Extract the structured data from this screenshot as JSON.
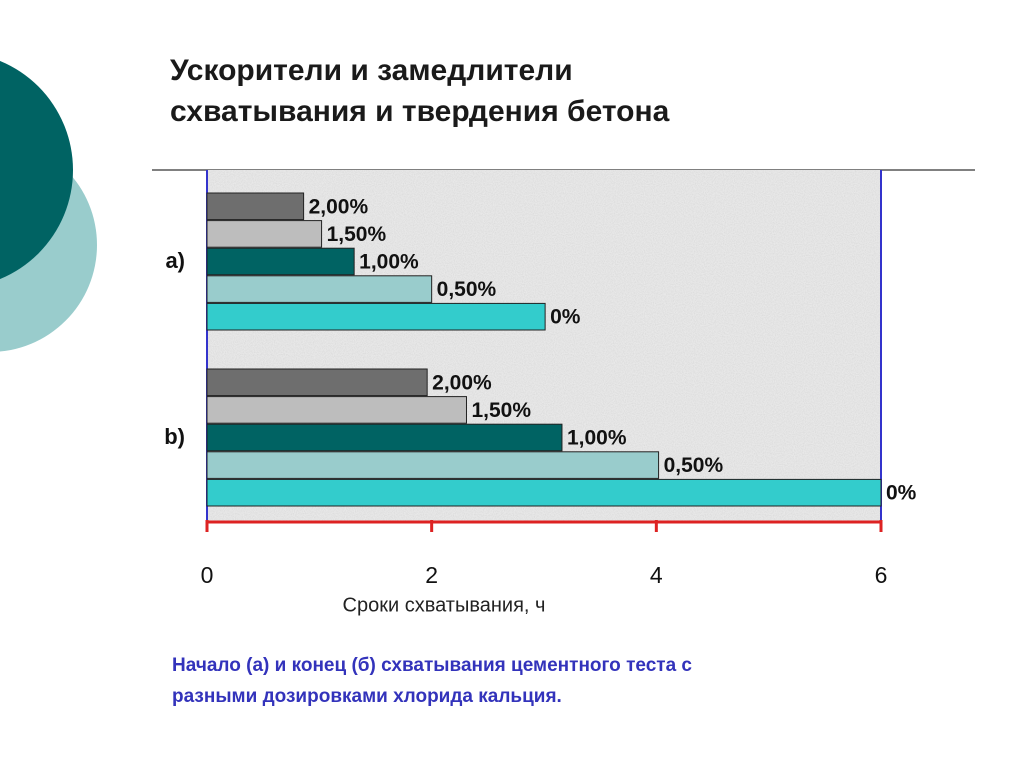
{
  "chart_data": {
    "type": "bar",
    "orientation": "horizontal",
    "title": [
      "Ускорители и замедлители",
      "схватывания и твердения бетона"
    ],
    "categories": [
      "а)",
      "b)"
    ],
    "series": [
      {
        "name": "2,00%",
        "color": "#6e6e6e",
        "values": [
          0.86,
          1.96
        ]
      },
      {
        "name": "1,50%",
        "color": "#bdbdbd",
        "values": [
          1.02,
          2.31
        ]
      },
      {
        "name": "1,00%",
        "color": "#006363",
        "values": [
          1.31,
          3.16
        ]
      },
      {
        "name": "0,50%",
        "color": "#99cccc",
        "values": [
          2.0,
          4.02
        ]
      },
      {
        "name": "0%",
        "color": "#33cccc",
        "values": [
          3.01,
          6.0
        ]
      }
    ],
    "xlim": [
      0,
      6
    ],
    "xticks": [
      0,
      2,
      4,
      6
    ],
    "xlabel": "Сроки схватывания, ч",
    "caption": [
      "Начало (а) и конец (б) схватывания цементного теста с",
      "разными дозировками хлорида кальция."
    ]
  }
}
